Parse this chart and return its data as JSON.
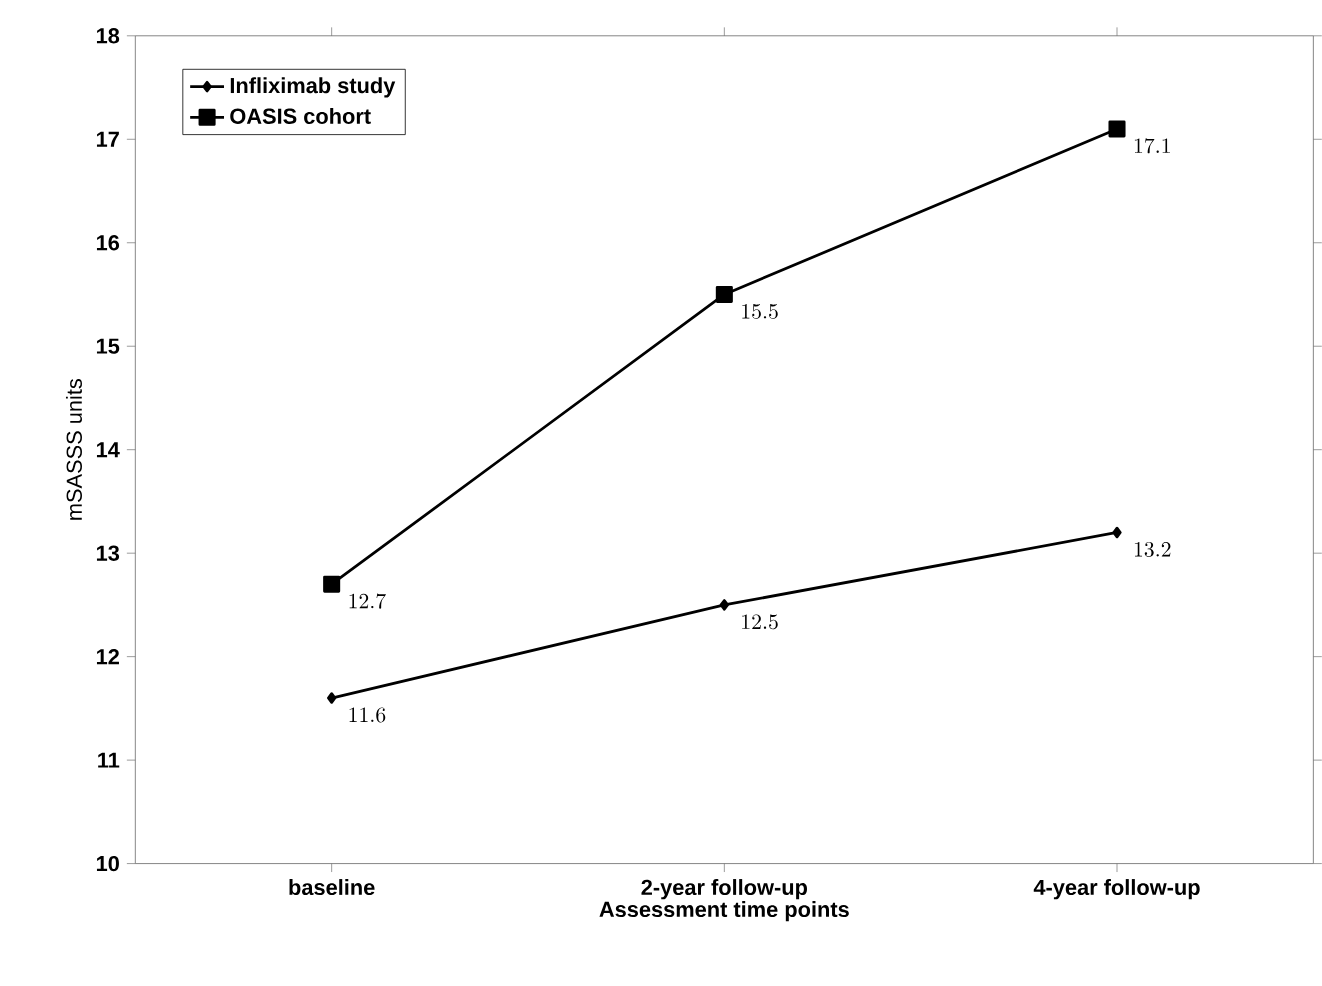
{
  "chart_data": {
    "type": "line",
    "xlabel": "Assessment time points",
    "ylabel": "mSASSS units",
    "categories": [
      "baseline",
      "2-year follow-up",
      "4-year follow-up"
    ],
    "series": [
      {
        "name": "Infliximab study",
        "color": "#000000",
        "marker": "diamond",
        "values": [
          11.6,
          12.5,
          13.2
        ]
      },
      {
        "name": "OASIS cohort",
        "color": "#000000",
        "marker": "square",
        "values": [
          12.7,
          15.5,
          17.1
        ]
      }
    ],
    "ylim": [
      10,
      18
    ],
    "yticks": [
      10,
      11,
      12,
      13,
      14,
      15,
      16,
      17,
      18
    ],
    "data_labels": true,
    "legend": "top left",
    "grid": false,
    "line_style": "solid"
  }
}
